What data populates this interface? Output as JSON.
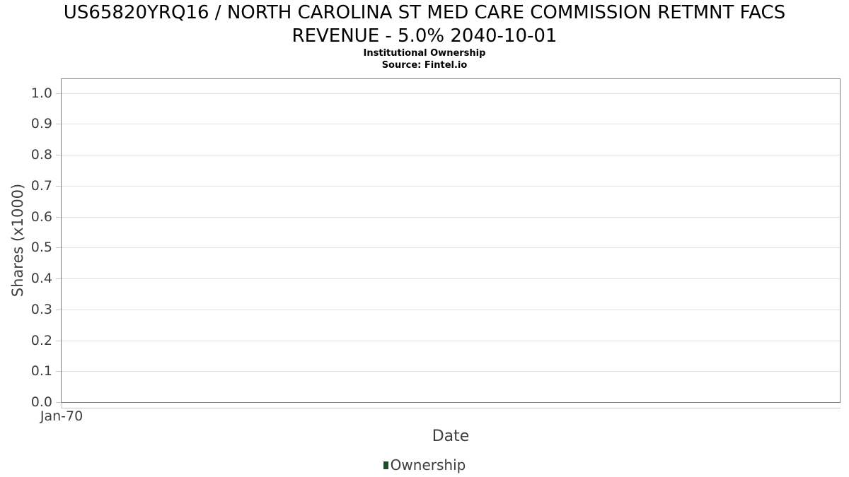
{
  "title": {
    "lines": [
      "US65820YRQ16 / NORTH CAROLINA ST MED CARE COMMISSION RETMNT FACS",
      "REVENUE - 5.0% 2040-10-01"
    ],
    "subtitle": "Institutional Ownership",
    "source": "Source: Fintel.io"
  },
  "chart_data": {
    "type": "line",
    "title": "US65820YRQ16 / NORTH CAROLINA ST MED CARE COMMISSION RETMNT FACS REVENUE - 5.0% 2040-10-01",
    "subtitle": "Institutional Ownership",
    "source": "Source: Fintel.io",
    "xlabel": "Date",
    "ylabel": "Shares (x1000)",
    "ylim": [
      0,
      1.045
    ],
    "ytick_labels": [
      "0.0",
      "0.1",
      "0.2",
      "0.3",
      "0.4",
      "0.5",
      "0.6",
      "0.7",
      "0.8",
      "0.9",
      "1.0"
    ],
    "xticks": [
      {
        "label": "Jan-70",
        "frac": 0
      }
    ],
    "grid": "horizontal-only",
    "legend": {
      "position": "bottom-center",
      "items": [
        {
          "label": "Ownership",
          "color": "#1f4d26"
        }
      ]
    },
    "series": [
      {
        "name": "Ownership",
        "color": "#1f4d26",
        "points": []
      }
    ],
    "colors": {
      "axis_border": "#7e7e7e",
      "gridline": "#e2e2e2",
      "tick": "#c4c4c4",
      "text": "#3d3d3d",
      "title_text": "#000000"
    }
  }
}
